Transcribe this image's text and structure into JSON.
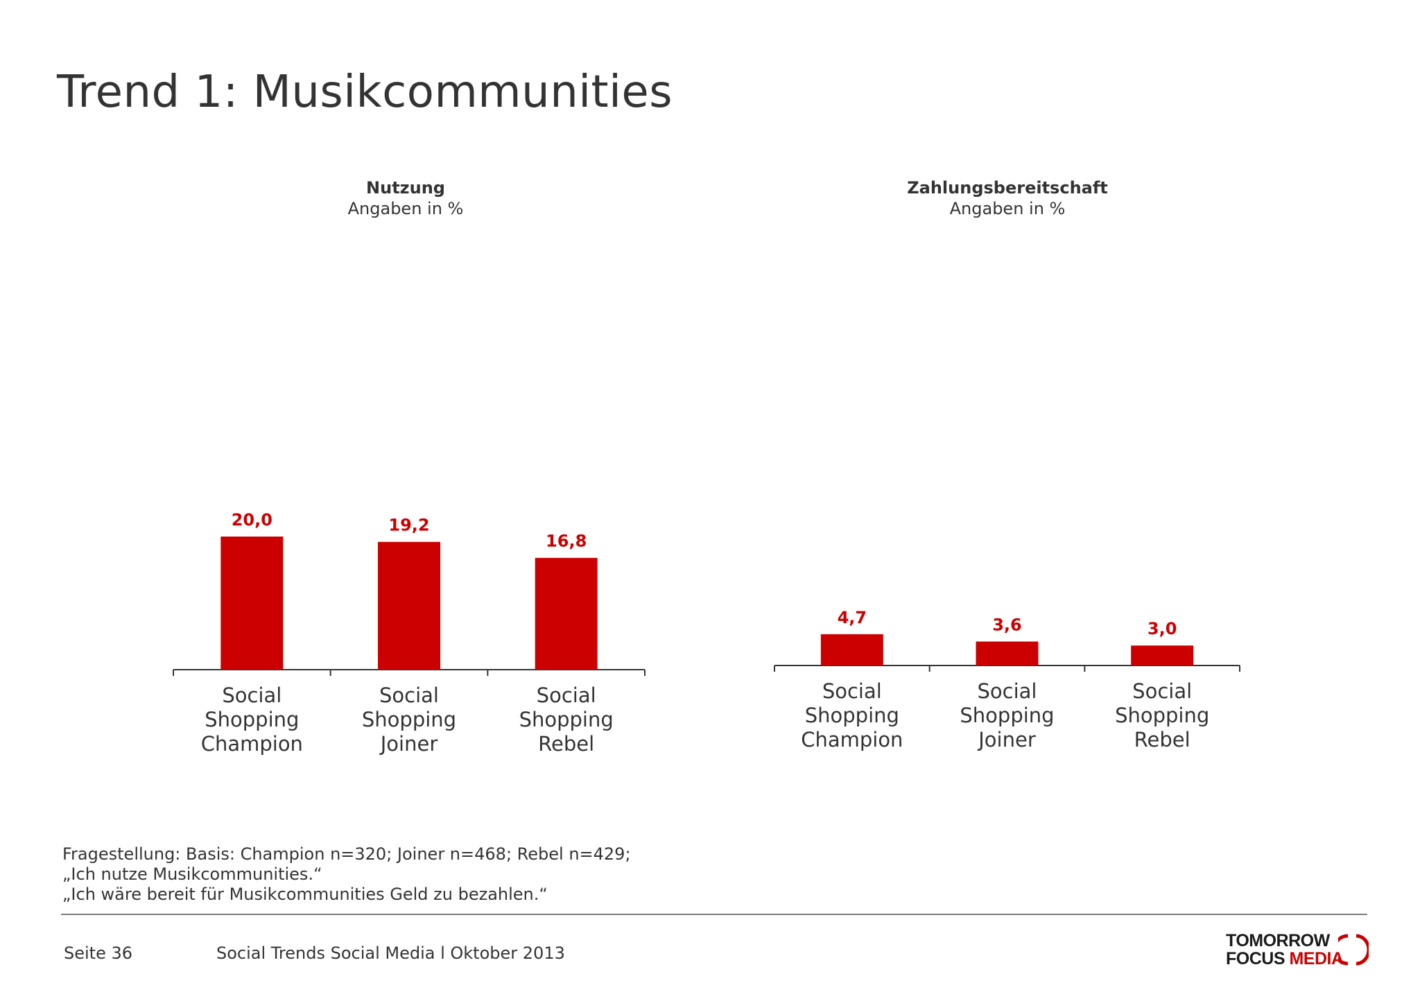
{
  "page": {
    "title": "Trend 1: Musikcommunities"
  },
  "footnote": {
    "lines": [
      "Fragestellung:  Basis: Champion n=320; Joiner n=468; Rebel n=429;",
      "„Ich nutze Musikcommunities.“",
      "„Ich wäre bereit für Musikcommunities Geld zu bezahlen.“"
    ]
  },
  "footer": {
    "page": "Seite 36",
    "doc": "Social Trends Social Media l Oktober 2013",
    "logo_line1": "TOMORROW",
    "logo_line2a": "FOCUS",
    "logo_line2b": "MEDIA"
  },
  "colors": {
    "bar": "#cc0000",
    "label": "#cc0000",
    "axis": "#333333"
  },
  "chart_data": [
    {
      "type": "bar",
      "title": "Nutzung",
      "subtitle": "Angaben in %",
      "categories": [
        [
          "Social",
          "Shopping",
          "Champion"
        ],
        [
          "Social",
          "Shopping",
          "Joiner"
        ],
        [
          "Social",
          "Shopping",
          "Rebel"
        ]
      ],
      "values": [
        20.0,
        19.2,
        16.8
      ],
      "value_labels": [
        "20,0",
        "19,2",
        "16,8"
      ],
      "ylim": [
        0,
        20
      ]
    },
    {
      "type": "bar",
      "title": "Zahlungsbereitschaft",
      "subtitle": "Angaben in %",
      "categories": [
        [
          "Social",
          "Shopping",
          "Champion"
        ],
        [
          "Social",
          "Shopping",
          "Joiner"
        ],
        [
          "Social",
          "Shopping",
          "Rebel"
        ]
      ],
      "values": [
        4.7,
        3.6,
        3.0
      ],
      "value_labels": [
        "4,7",
        "3,6",
        "3,0"
      ],
      "ylim": [
        0,
        20
      ]
    }
  ]
}
